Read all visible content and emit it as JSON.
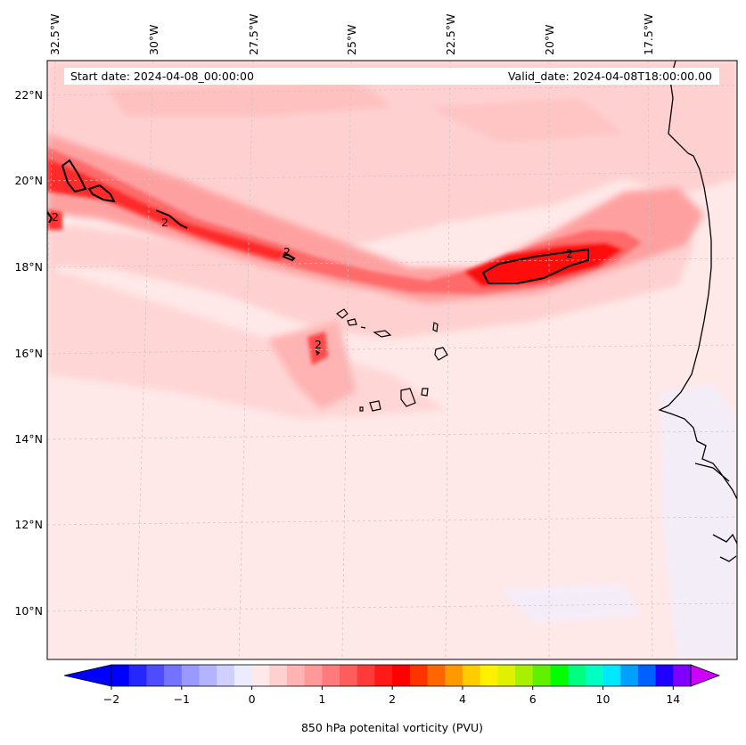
{
  "map": {
    "start_date": "Start date: 2024-04-08_00:00:00",
    "valid_date": "Valid_date: 2024-04-08T18:00:00.00",
    "lon_labels": [
      "32.5°W",
      "30°W",
      "27.5°W",
      "25°W",
      "22.5°W",
      "20°W",
      "17.5°W"
    ],
    "lat_labels": [
      "22°N",
      "20°N",
      "18°N",
      "16°N",
      "14°N",
      "12°N",
      "10°N"
    ],
    "contour_level": "2",
    "colors": {
      "background": "#ffe8e8",
      "coast": "#000000",
      "grid": "#bbbbbb"
    }
  },
  "colorbar": {
    "title": "850 hPa potenital vorticity (PVU)",
    "tick_labels": [
      "−2",
      "−1",
      "0",
      "1",
      "2",
      "4",
      "6",
      "10",
      "14"
    ],
    "colors": [
      "#0000ff",
      "#2626ff",
      "#4d4dff",
      "#7373ff",
      "#9999ff",
      "#b3b3ff",
      "#d0d0ff",
      "#ececff",
      "#ffe8e8",
      "#ffd0d0",
      "#ffb3b3",
      "#ff9999",
      "#ff7b7b",
      "#ff5c5c",
      "#ff3a3a",
      "#ff1a1a",
      "#ff0000",
      "#ff3300",
      "#ff6600",
      "#ff9900",
      "#ffcc00",
      "#fff000",
      "#e0f000",
      "#a8f000",
      "#60f000",
      "#00ff00",
      "#00ff80",
      "#00ffc0",
      "#00e8ff",
      "#00a0ff",
      "#0060ff",
      "#2000ff",
      "#8000ff"
    ],
    "under_color": "#0000ff",
    "over_color": "#cc00ff"
  }
}
